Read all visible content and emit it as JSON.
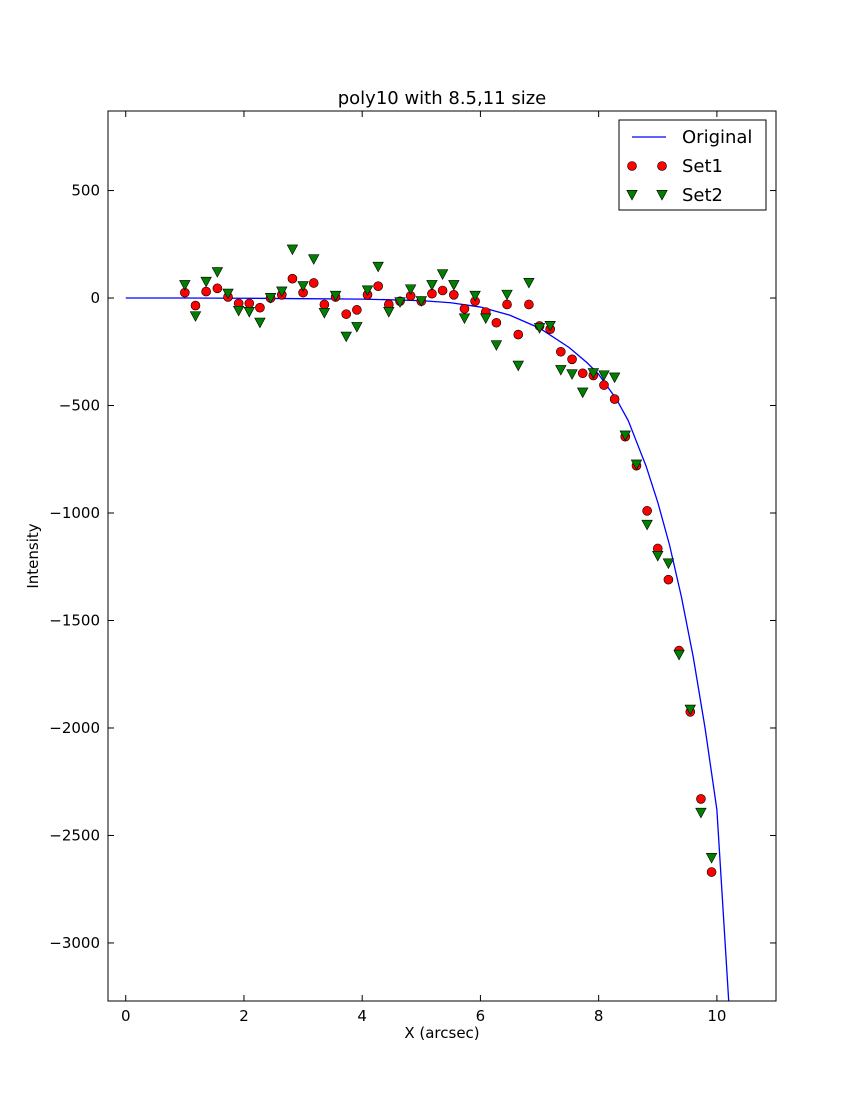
{
  "chart_data": {
    "type": "scatter",
    "title": "poly10 with 8.5,11 size",
    "xlabel": "X (arcsec)",
    "ylabel": "Intensity",
    "xlim": [
      -0.3,
      11.0
    ],
    "ylim": [
      -3270,
      870
    ],
    "xticks": [
      0,
      2,
      4,
      6,
      8,
      10
    ],
    "xtick_labels": [
      "0",
      "2",
      "4",
      "6",
      "8",
      "10"
    ],
    "yticks": [
      500,
      0,
      -500,
      -1000,
      -1500,
      -2000,
      -2500,
      -3000
    ],
    "ytick_labels": [
      "500",
      "0",
      "−500",
      "−1000",
      "−1500",
      "−2000",
      "−2500",
      "−3000"
    ],
    "grid": false,
    "legend_position": "top-right",
    "series": [
      {
        "name": "Original",
        "kind": "line",
        "color": "#0000ff",
        "x": [
          0,
          1,
          2,
          3,
          4,
          5,
          5.5,
          6,
          6.5,
          7,
          7.5,
          7.8,
          8,
          8.3,
          8.5,
          8.8,
          9,
          9.2,
          9.4,
          9.6,
          9.8,
          10,
          10.2
        ],
        "y": [
          0,
          0,
          -1,
          -3,
          -5,
          -12,
          -22,
          -42,
          -80,
          -140,
          -230,
          -300,
          -355,
          -470,
          -570,
          -780,
          -950,
          -1150,
          -1390,
          -1670,
          -2000,
          -2380,
          -3270
        ]
      },
      {
        "name": "Set1",
        "kind": "marker",
        "marker": "circle",
        "color": "#ff0000",
        "x": [
          1.0,
          1.18,
          1.36,
          1.55,
          1.73,
          1.91,
          2.09,
          2.27,
          2.45,
          2.64,
          2.82,
          3.0,
          3.18,
          3.36,
          3.55,
          3.73,
          3.91,
          4.09,
          4.27,
          4.45,
          4.64,
          4.82,
          5.0,
          5.18,
          5.36,
          5.55,
          5.73,
          5.91,
          6.09,
          6.27,
          6.45,
          6.64,
          6.82,
          7.0,
          7.18,
          7.36,
          7.55,
          7.73,
          7.91,
          8.09,
          8.27,
          8.45,
          8.64,
          8.82,
          9.0,
          9.18,
          9.36,
          9.55,
          9.73,
          9.91
        ],
        "y": [
          25,
          -35,
          30,
          45,
          5,
          -25,
          -25,
          -45,
          0,
          15,
          90,
          25,
          70,
          -30,
          5,
          -75,
          -55,
          15,
          55,
          -30,
          -15,
          10,
          -15,
          20,
          35,
          15,
          -50,
          -15,
          -65,
          -115,
          -30,
          -170,
          -30,
          -130,
          -145,
          -250,
          -285,
          -350,
          -360,
          -405,
          -470,
          -645,
          -780,
          -990,
          -1165,
          -1310,
          -1640,
          -1925,
          -2330,
          -2670
        ]
      },
      {
        "name": "Set2",
        "kind": "marker",
        "marker": "triangle-down",
        "color": "#008000",
        "x": [
          1.0,
          1.18,
          1.36,
          1.55,
          1.73,
          1.91,
          2.09,
          2.27,
          2.45,
          2.64,
          2.82,
          3.0,
          3.18,
          3.36,
          3.55,
          3.73,
          3.91,
          4.09,
          4.27,
          4.45,
          4.64,
          4.82,
          5.0,
          5.18,
          5.36,
          5.55,
          5.73,
          5.91,
          6.09,
          6.27,
          6.45,
          6.64,
          6.82,
          7.0,
          7.18,
          7.36,
          7.55,
          7.73,
          7.91,
          8.09,
          8.27,
          8.45,
          8.64,
          8.82,
          9.0,
          9.18,
          9.36,
          9.55,
          9.73,
          9.91
        ],
        "y": [
          60,
          -85,
          75,
          120,
          20,
          -60,
          -65,
          -115,
          0,
          30,
          225,
          55,
          180,
          -70,
          10,
          -180,
          -135,
          35,
          145,
          -65,
          -20,
          40,
          -15,
          60,
          110,
          60,
          -95,
          10,
          -95,
          -220,
          15,
          -315,
          70,
          -140,
          -130,
          -335,
          -355,
          -440,
          -350,
          -360,
          -370,
          -640,
          -775,
          -1055,
          -1200,
          -1235,
          -1660,
          -1915,
          -2395,
          -2605
        ]
      }
    ]
  }
}
